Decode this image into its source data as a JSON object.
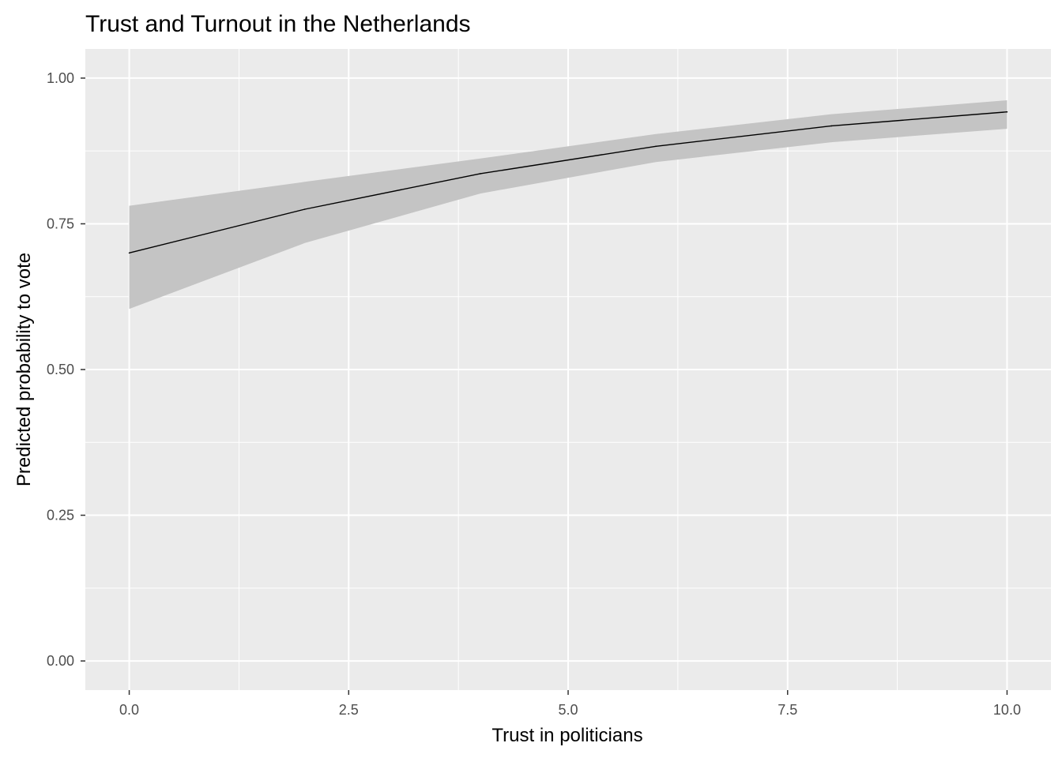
{
  "chart_data": {
    "type": "line",
    "title": "Trust and Turnout in the Netherlands",
    "xlabel": "Trust in politicians",
    "ylabel": "Predicted probability to vote",
    "xlim": [
      -0.5,
      10.5
    ],
    "ylim": [
      -0.05,
      1.05
    ],
    "x_ticks": [
      0,
      2.5,
      5,
      7.5,
      10
    ],
    "x_tick_labels": [
      "0.0",
      "2.5",
      "5.0",
      "7.5",
      "10.0"
    ],
    "y_ticks": [
      0,
      0.25,
      0.5,
      0.75,
      1
    ],
    "y_tick_labels": [
      "0.00",
      "0.25",
      "0.50",
      "0.75",
      "1.00"
    ],
    "grid": true,
    "colors": {
      "panel_background": "#ebebeb",
      "grid": "#ffffff",
      "line": "#000000",
      "ribbon": "#c4c4c4",
      "tick_text": "#4d4d4d"
    },
    "series": [
      {
        "x": [
          0,
          2,
          4,
          6,
          8,
          10
        ],
        "values": [
          0.7,
          0.775,
          0.836,
          0.883,
          0.918,
          0.942
        ],
        "ci_lower": [
          0.604,
          0.717,
          0.802,
          0.856,
          0.89,
          0.913
        ],
        "ci_upper": [
          0.781,
          0.822,
          0.862,
          0.904,
          0.938,
          0.962
        ]
      }
    ]
  }
}
